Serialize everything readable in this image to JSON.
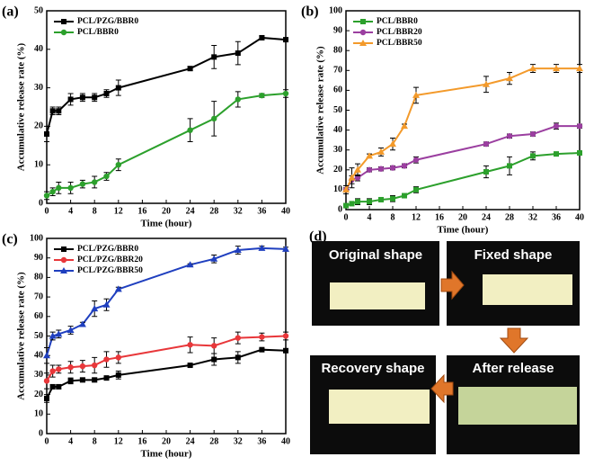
{
  "chart_data": [
    {
      "type": "line",
      "panel_label": "(a)",
      "x_label": "Time (hour)",
      "y_label": "Accumulative release rate (%)",
      "x": [
        0,
        1,
        2,
        4,
        6,
        8,
        10,
        12,
        24,
        28,
        32,
        36,
        40
      ],
      "xlim": [
        0,
        40
      ],
      "xticks": [
        0,
        4,
        8,
        12,
        16,
        20,
        24,
        28,
        32,
        36,
        40
      ],
      "ylim": [
        0,
        50
      ],
      "yticks": [
        0,
        10,
        20,
        30,
        40,
        50
      ],
      "series": [
        {
          "name": "PCL/PZG/BBR0",
          "color": "#000000",
          "marker": "square",
          "values": [
            18,
            24,
            24,
            27,
            27.5,
            27.5,
            28.5,
            30,
            35,
            38,
            39,
            43,
            42.5
          ],
          "errors": [
            2,
            1,
            1,
            1.5,
            1,
            1,
            1,
            2,
            0.5,
            3,
            3,
            0.5,
            0.5
          ]
        },
        {
          "name": "PCL/BBR0",
          "color": "#2ca02c",
          "marker": "circle",
          "values": [
            2,
            3,
            4,
            4,
            5,
            5.5,
            7,
            10,
            19,
            22,
            27,
            28,
            28.5
          ],
          "errors": [
            1,
            1,
            1.5,
            1.5,
            1,
            1.5,
            1,
            1.5,
            3,
            4.5,
            2,
            0.5,
            1
          ]
        }
      ]
    },
    {
      "type": "line",
      "panel_label": "(b)",
      "x_label": "Time (hour)",
      "y_label": "Accumulative release rate (%)",
      "x": [
        0,
        1,
        2,
        4,
        6,
        8,
        10,
        12,
        24,
        28,
        32,
        36,
        40
      ],
      "xlim": [
        0,
        40
      ],
      "xticks": [
        0,
        4,
        8,
        12,
        16,
        20,
        24,
        28,
        32,
        36,
        40
      ],
      "ylim": [
        0,
        100
      ],
      "yticks": [
        0,
        10,
        20,
        30,
        40,
        50,
        60,
        70,
        80,
        90,
        100
      ],
      "series": [
        {
          "name": "PCL/BBR0",
          "color": "#2ca02c",
          "marker": "square",
          "values": [
            2,
            3,
            4,
            4,
            5,
            5.5,
            7,
            10,
            19,
            22,
            27,
            28,
            28.5
          ],
          "errors": [
            1,
            1,
            1.5,
            1.5,
            1,
            1.5,
            1,
            1.5,
            3,
            4.5,
            2,
            0.5,
            1
          ]
        },
        {
          "name": "PCL/BBR20",
          "color": "#9b3fa0",
          "marker": "circle",
          "values": [
            10,
            15,
            16,
            20,
            20.5,
            21,
            22,
            25,
            33,
            37,
            38,
            42,
            42
          ],
          "errors": [
            1,
            2,
            1.5,
            1,
            1,
            1,
            1,
            1.5,
            1,
            1,
            1,
            1.5,
            1
          ]
        },
        {
          "name": "PCL/BBR50",
          "color": "#f39a2b",
          "marker": "triangle",
          "values": [
            10,
            16,
            20,
            27,
            29,
            33,
            42,
            57.5,
            63,
            66,
            71,
            71,
            71
          ],
          "errors": [
            2,
            5,
            3,
            1,
            2,
            3,
            1,
            4,
            4,
            3,
            2,
            2,
            2
          ]
        }
      ]
    },
    {
      "type": "line",
      "panel_label": "(c)",
      "x_label": "Time (hour)",
      "y_label": "Accumulative release rate (%)",
      "x": [
        0,
        1,
        2,
        4,
        6,
        8,
        10,
        12,
        24,
        28,
        32,
        36,
        40
      ],
      "xlim": [
        0,
        40
      ],
      "xticks": [
        0,
        4,
        8,
        12,
        16,
        20,
        24,
        28,
        32,
        36,
        40
      ],
      "ylim": [
        0,
        100
      ],
      "yticks": [
        0,
        10,
        20,
        30,
        40,
        50,
        60,
        70,
        80,
        90,
        100
      ],
      "series": [
        {
          "name": "PCL/PZG/BBR0",
          "color": "#000000",
          "marker": "square",
          "values": [
            18,
            24,
            24,
            27,
            27.5,
            27.5,
            28.5,
            30,
            35,
            38,
            39,
            43,
            42.5
          ],
          "errors": [
            2,
            1,
            1,
            1.5,
            1,
            1,
            1,
            2,
            0.5,
            3,
            3,
            0.5,
            0.5
          ]
        },
        {
          "name": "PCL/PZG/BBR20",
          "color": "#e8373a",
          "marker": "circle",
          "values": [
            27,
            32,
            33,
            34,
            34.5,
            35,
            38,
            39,
            45.5,
            45,
            49,
            49.5,
            50
          ],
          "errors": [
            4,
            3,
            2,
            3,
            3,
            4,
            4,
            3,
            4,
            4,
            3,
            2,
            2
          ]
        },
        {
          "name": "PCL/PZG/BBR50",
          "color": "#1f3fbf",
          "marker": "triangle",
          "values": [
            40,
            50,
            51,
            53,
            56,
            64,
            66,
            74,
            86.5,
            89.5,
            94,
            95,
            94.5
          ],
          "errors": [
            4,
            2,
            2,
            2,
            1,
            4,
            3,
            1,
            0.5,
            2,
            2,
            1,
            1
          ]
        }
      ]
    }
  ],
  "diagram": {
    "panel_label": "(d)",
    "panels": [
      "Original shape",
      "Fixed shape",
      "After release",
      "Recovery shape"
    ]
  }
}
